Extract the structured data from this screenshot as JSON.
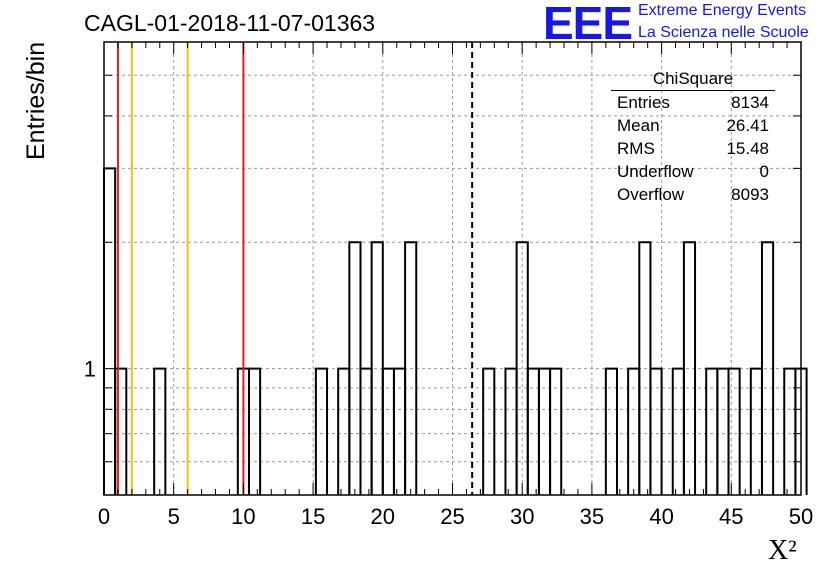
{
  "header": {
    "title": "CAGL-01-2018-11-07-01363",
    "logo_text": "EEE",
    "logo_line1": "Extreme Energy Events",
    "logo_line2": "La Scienza nelle Scuole"
  },
  "stats_box": {
    "title": "ChiSquare",
    "rows": [
      {
        "label": "Entries",
        "value": "8134"
      },
      {
        "label": "Mean",
        "value": "26.41"
      },
      {
        "label": "RMS",
        "value": "15.48"
      },
      {
        "label": "Underflow",
        "value": "0"
      },
      {
        "label": "Overflow",
        "value": "8093"
      }
    ]
  },
  "chart_data": {
    "type": "histogram",
    "ylabel": "Entries/bin",
    "xlabel": "X²",
    "xlim": [
      0,
      50
    ],
    "ylim": [
      0.5,
      6
    ],
    "ylog": true,
    "grid": true,
    "bin_width": 0.8,
    "x_ticks": [
      "0",
      "5",
      "10",
      "15",
      "20",
      "25",
      "30",
      "35",
      "40",
      "45",
      "50"
    ],
    "y_tick_labels": [
      {
        "value": 1,
        "label": "1"
      }
    ],
    "bins": [
      {
        "x": 0.0,
        "count": 3
      },
      {
        "x": 0.8,
        "count": 1
      },
      {
        "x": 3.6,
        "count": 1
      },
      {
        "x": 9.6,
        "count": 1
      },
      {
        "x": 10.4,
        "count": 1
      },
      {
        "x": 15.2,
        "count": 1
      },
      {
        "x": 16.8,
        "count": 1
      },
      {
        "x": 17.6,
        "count": 2
      },
      {
        "x": 18.4,
        "count": 1
      },
      {
        "x": 19.2,
        "count": 2
      },
      {
        "x": 20.0,
        "count": 1
      },
      {
        "x": 20.8,
        "count": 1
      },
      {
        "x": 21.6,
        "count": 2
      },
      {
        "x": 27.2,
        "count": 1
      },
      {
        "x": 28.8,
        "count": 1
      },
      {
        "x": 29.6,
        "count": 2
      },
      {
        "x": 30.4,
        "count": 1
      },
      {
        "x": 31.2,
        "count": 1
      },
      {
        "x": 32.0,
        "count": 1
      },
      {
        "x": 36.0,
        "count": 1
      },
      {
        "x": 37.6,
        "count": 1
      },
      {
        "x": 38.4,
        "count": 2
      },
      {
        "x": 39.2,
        "count": 1
      },
      {
        "x": 40.8,
        "count": 1
      },
      {
        "x": 41.6,
        "count": 2
      },
      {
        "x": 43.2,
        "count": 1
      },
      {
        "x": 44.0,
        "count": 1
      },
      {
        "x": 44.8,
        "count": 1
      },
      {
        "x": 46.4,
        "count": 1
      },
      {
        "x": 47.2,
        "count": 2
      },
      {
        "x": 48.8,
        "count": 1
      },
      {
        "x": 49.6,
        "count": 1
      }
    ],
    "vertical_lines": [
      {
        "x": 1.0,
        "color": "#e02020",
        "style": "solid"
      },
      {
        "x": 2.0,
        "color": "#f2c018",
        "style": "solid"
      },
      {
        "x": 6.0,
        "color": "#f2c018",
        "style": "solid"
      },
      {
        "x": 10.0,
        "color": "#e02020",
        "style": "solid"
      },
      {
        "x": 26.41,
        "color": "#000000",
        "style": "dashed"
      }
    ]
  }
}
